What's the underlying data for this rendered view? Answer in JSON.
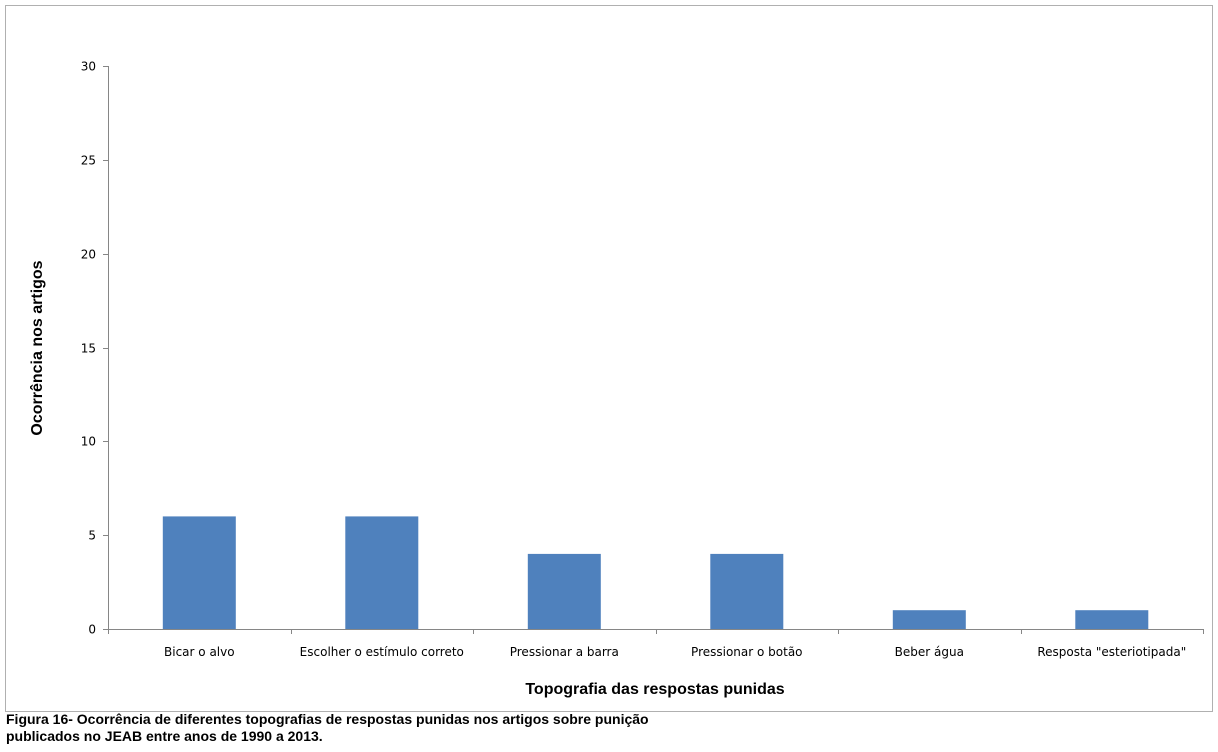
{
  "chart_data": {
    "type": "bar",
    "categories": [
      "Bicar o alvo",
      "Escolher o estímulo correto",
      "Pressionar a barra",
      "Pressionar o botão",
      "Beber água",
      "Resposta \"esteriotipada\""
    ],
    "values": [
      6,
      6,
      4,
      4,
      1,
      1
    ],
    "xlabel": "Topografia das respostas punidas",
    "ylabel": "Ocorrência nos artigos",
    "ylim": [
      0,
      30
    ],
    "yticks": [
      0,
      5,
      10,
      15,
      20,
      25,
      30
    ],
    "grid": false,
    "legend": "none",
    "bar_color": "#4f81bd",
    "axis_color": "#868686",
    "border_color": "#b0b0b0"
  },
  "caption": {
    "line1": "Figura 16- Ocorrência de diferentes topografias de respostas punidas nos artigos sobre punição",
    "line2": "publicados no JEAB entre anos de 1990 a 2013."
  }
}
